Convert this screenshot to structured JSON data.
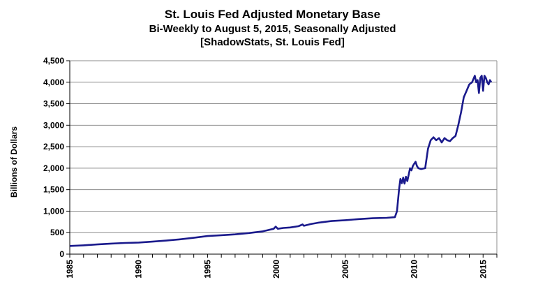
{
  "chart_data": {
    "type": "line",
    "title": "St. Louis Fed Adjusted Monetary Base",
    "subtitle": "Bi-Weekly to August 5, 2015, Seasonally Adjusted",
    "source": "[ShadowStats, St. Louis Fed]",
    "xlabel": "",
    "ylabel": "Billions  of Dollars",
    "xlim": [
      1985,
      2016
    ],
    "ylim": [
      0,
      4500
    ],
    "x_ticks": [
      1985,
      1990,
      1995,
      2000,
      2005,
      2010,
      2015
    ],
    "y_ticks": [
      0,
      500,
      1000,
      1500,
      2000,
      2500,
      3000,
      3500,
      4000,
      4500
    ],
    "y_tick_labels": [
      "0",
      "500",
      "1,000",
      "1,500",
      "2,000",
      "2,500",
      "3,000",
      "3,500",
      "4,000",
      "4,500"
    ],
    "grid": "horizontal",
    "line_color": "#1a1a8c",
    "series": [
      {
        "x": [
          1985.0,
          1986.0,
          1987.0,
          1988.0,
          1989.0,
          1990.0,
          1991.0,
          1992.0,
          1993.0,
          1994.0,
          1995.0,
          1996.0,
          1997.0,
          1998.0,
          1999.0,
          1999.8,
          1999.95,
          2000.1,
          2000.5,
          2001.0,
          2001.6,
          2001.9,
          2002.0,
          2002.5,
          2003.0,
          2004.0,
          2005.0,
          2006.0,
          2007.0,
          2008.0,
          2008.6,
          2008.75,
          2008.9,
          2009.0,
          2009.1,
          2009.2,
          2009.3,
          2009.4,
          2009.5,
          2009.6,
          2009.7,
          2009.8,
          2009.9,
          2010.0,
          2010.1,
          2010.2,
          2010.3,
          2010.5,
          2010.8,
          2011.0,
          2011.2,
          2011.4,
          2011.6,
          2011.8,
          2012.0,
          2012.2,
          2012.4,
          2012.6,
          2012.8,
          2013.0,
          2013.2,
          2013.4,
          2013.6,
          2013.8,
          2014.0,
          2014.2,
          2014.4,
          2014.5,
          2014.6,
          2014.7,
          2014.8,
          2014.9,
          2015.0,
          2015.1,
          2015.2,
          2015.3,
          2015.4,
          2015.5,
          2015.6
        ],
        "values": [
          190,
          205,
          225,
          245,
          260,
          270,
          290,
          315,
          345,
          380,
          420,
          440,
          460,
          490,
          530,
          590,
          640,
          590,
          610,
          620,
          650,
          690,
          660,
          700,
          730,
          770,
          790,
          815,
          835,
          845,
          860,
          1000,
          1500,
          1750,
          1650,
          1780,
          1640,
          1800,
          1700,
          1850,
          2000,
          1950,
          2050,
          2100,
          2150,
          2050,
          2000,
          1980,
          2000,
          2450,
          2650,
          2720,
          2650,
          2700,
          2600,
          2700,
          2650,
          2630,
          2700,
          2750,
          3000,
          3300,
          3650,
          3800,
          3950,
          4000,
          4150,
          4000,
          4050,
          3750,
          4100,
          4150,
          3800,
          4150,
          4100,
          4000,
          3950,
          4050,
          4000
        ]
      }
    ]
  }
}
